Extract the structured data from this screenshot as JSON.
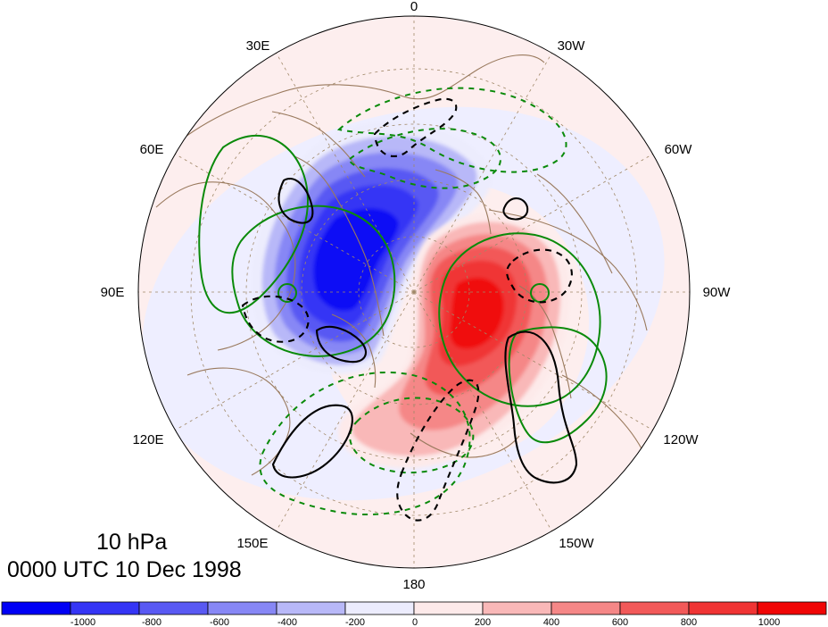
{
  "map": {
    "projection": "north polar stereographic",
    "longitude_labels": [
      "0",
      "30W",
      "60W",
      "90W",
      "120W",
      "150W",
      "180",
      "150E",
      "120E",
      "90E",
      "60E",
      "30E"
    ],
    "colors": {
      "ocean_pale_blue": "#eeeeff",
      "ocean_pale_pink": "#fdeeee",
      "coastline": "#9a7a5e",
      "grid": "#a08868",
      "positive_contour": "#0a8a0a",
      "negative_contour": "#0a8a0a",
      "black_contour": "#000000"
    },
    "features": {
      "blue_anomaly": "negative height anomaly centered over northern Eurasia",
      "red_anomaly": "positive height anomaly centered over Canada/North America",
      "green_contours": "solid and dashed green contours",
      "black_contours": "solid and dashed black contours"
    }
  },
  "caption": {
    "level": "10 hPa",
    "time": "0000 UTC 10 Dec 1998"
  },
  "colorbar": {
    "labels": [
      "-1000",
      "-800",
      "-600",
      "-400",
      "-200",
      "0",
      "200",
      "400",
      "600",
      "800",
      "1000"
    ],
    "colors": [
      "#0000f5",
      "#3535f5",
      "#5959f3",
      "#8787f5",
      "#b8b8f8",
      "#ececfd",
      "#fdeaea",
      "#f9b8b8",
      "#f58787",
      "#f25959",
      "#f03434",
      "#f00505"
    ]
  }
}
